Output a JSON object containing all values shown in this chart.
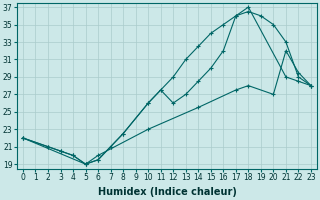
{
  "xlabel": "Humidex (Indice chaleur)",
  "background_color": "#cce8e8",
  "grid_color": "#aacccc",
  "line_color": "#006666",
  "line1": {
    "x": [
      0,
      2,
      3,
      4,
      5,
      6,
      7,
      8,
      10,
      11,
      12,
      13,
      14,
      15,
      16,
      17,
      18,
      21,
      22,
      23
    ],
    "y": [
      22,
      21,
      20.5,
      20,
      19,
      19.5,
      21,
      22.5,
      26,
      27.5,
      26,
      27,
      28.5,
      30,
      32,
      36,
      37,
      29,
      28.5,
      28
    ]
  },
  "line2": {
    "x": [
      0,
      2,
      3,
      4,
      5,
      6,
      7,
      8,
      10,
      11,
      12,
      13,
      14,
      15,
      16,
      17,
      18,
      19,
      20,
      21,
      22,
      23
    ],
    "y": [
      22,
      21,
      20.5,
      20,
      19,
      19.5,
      21,
      22.5,
      26,
      27.5,
      29,
      31,
      32.5,
      34,
      35,
      36,
      36.5,
      36,
      35,
      33,
      29,
      28
    ]
  },
  "line3": {
    "x": [
      0,
      5,
      6,
      10,
      14,
      17,
      18,
      20,
      21,
      22,
      23
    ],
    "y": [
      22,
      19,
      20,
      23,
      25.5,
      27.5,
      28,
      27,
      32,
      29.5,
      28
    ]
  },
  "xlim": [
    -0.5,
    23.5
  ],
  "ylim": [
    18.5,
    37.5
  ],
  "xticks": [
    0,
    1,
    2,
    3,
    4,
    5,
    6,
    7,
    8,
    9,
    10,
    11,
    12,
    13,
    14,
    15,
    16,
    17,
    18,
    19,
    20,
    21,
    22,
    23
  ],
  "yticks": [
    19,
    21,
    23,
    25,
    27,
    29,
    31,
    33,
    35,
    37
  ],
  "tick_fontsize": 5.5,
  "xlabel_fontsize": 7
}
